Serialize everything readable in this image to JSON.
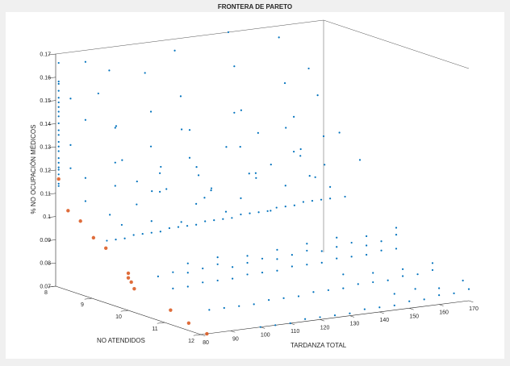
{
  "chart_data": {
    "type": "scatter",
    "projection": "3d",
    "title": "FRONTERA DE PARETO",
    "xlabel": "TARDANZA TOTAL",
    "ylabel": "NO ATENDIDOS",
    "zlabel": "% NO OCUPACIÓN MÉDICOS",
    "xlim": [
      80,
      170
    ],
    "ylim": [
      8,
      12
    ],
    "zlim": [
      0.07,
      0.17
    ],
    "xticks": [
      80,
      90,
      100,
      110,
      120,
      130,
      140,
      150,
      160,
      170
    ],
    "yticks": [
      8,
      9,
      10,
      11,
      12
    ],
    "zticks": [
      0.07,
      0.08,
      0.09,
      0.1,
      0.11,
      0.12,
      0.13,
      0.14,
      0.15,
      0.16,
      0.17
    ],
    "grid": false,
    "series": [
      {
        "color": "#0072bd",
        "marker": "dot",
        "comment_x_y_z": "x=tardanza total, y=no atendidos, z=% no ocupacion",
        "points": [
          [
            81,
            8,
            0.166
          ],
          [
            81,
            8,
            0.158
          ],
          [
            81,
            8,
            0.157
          ],
          [
            81,
            8,
            0.154
          ],
          [
            81,
            8,
            0.151
          ],
          [
            81,
            8,
            0.149
          ],
          [
            81,
            8,
            0.147
          ],
          [
            81,
            8,
            0.145
          ],
          [
            81,
            8,
            0.143
          ],
          [
            81,
            8,
            0.14
          ],
          [
            81,
            8,
            0.137
          ],
          [
            81,
            8,
            0.135
          ],
          [
            81,
            8,
            0.132
          ],
          [
            81,
            8,
            0.13
          ],
          [
            81,
            8,
            0.128
          ],
          [
            81,
            8,
            0.125
          ],
          [
            81,
            8,
            0.123
          ],
          [
            81,
            8,
            0.121
          ],
          [
            81,
            8,
            0.12
          ],
          [
            81,
            8,
            0.118
          ],
          [
            81,
            8,
            0.114
          ],
          [
            81,
            8,
            0.113
          ],
          [
            85,
            8,
            0.15
          ],
          [
            85,
            8,
            0.13
          ],
          [
            85,
            8,
            0.12
          ],
          [
            90,
            8,
            0.165
          ],
          [
            90,
            8,
            0.14
          ],
          [
            90,
            8,
            0.115
          ],
          [
            90,
            8,
            0.105
          ],
          [
            98,
            8,
            0.16
          ],
          [
            100,
            8,
            0.135
          ],
          [
            100,
            8,
            0.12
          ],
          [
            100,
            8,
            0.11
          ],
          [
            110,
            8,
            0.157
          ],
          [
            112,
            8,
            0.14
          ],
          [
            112,
            8,
            0.125
          ],
          [
            115,
            8,
            0.113
          ],
          [
            115,
            8,
            0.105
          ],
          [
            120,
            8,
            0.165
          ],
          [
            122,
            8,
            0.145
          ],
          [
            125,
            8,
            0.13
          ],
          [
            125,
            8,
            0.118
          ],
          [
            128,
            8,
            0.11
          ],
          [
            130,
            8,
            0.1
          ],
          [
            138,
            8,
            0.17
          ],
          [
            140,
            8,
            0.155
          ],
          [
            140,
            8,
            0.135
          ],
          [
            142,
            8,
            0.12
          ],
          [
            145,
            8,
            0.108
          ],
          [
            148,
            8,
            0.125
          ],
          [
            155,
            8,
            0.165
          ],
          [
            157,
            8,
            0.145
          ],
          [
            160,
            8,
            0.13
          ],
          [
            160,
            8,
            0.115
          ],
          [
            165,
            8,
            0.15
          ],
          [
            168,
            8,
            0.138
          ],
          [
            170,
            8,
            0.12
          ],
          [
            87,
            8.6,
            0.155
          ],
          [
            93,
            8.6,
            0.14
          ],
          [
            95,
            8.6,
            0.125
          ],
          [
            100,
            8.6,
            0.115
          ],
          [
            105,
            8.6,
            0.11
          ],
          [
            108,
            8.6,
            0.12
          ],
          [
            115,
            8.6,
            0.135
          ],
          [
            120,
            8.6,
            0.118
          ],
          [
            125,
            8.6,
            0.108
          ],
          [
            130,
            8.6,
            0.125
          ],
          [
            135,
            8.6,
            0.14
          ],
          [
            140,
            8.6,
            0.11
          ],
          [
            145,
            8.6,
            0.115
          ],
          [
            150,
            8.6,
            0.13
          ],
          [
            155,
            8.6,
            0.12
          ],
          [
            158,
            8.6,
            0.108
          ],
          [
            163,
            8.6,
            0.112
          ],
          [
            168,
            8.6,
            0.125
          ],
          [
            86,
            9,
            0.105
          ],
          [
            90,
            9,
            0.1
          ],
          [
            95,
            9,
            0.108
          ],
          [
            100,
            9,
            0.1
          ],
          [
            105,
            9,
            0.113
          ],
          [
            110,
            9,
            0.098
          ],
          [
            115,
            9,
            0.105
          ],
          [
            120,
            9,
            0.11
          ],
          [
            125,
            9,
            0.1
          ],
          [
            130,
            9,
            0.105
          ],
          [
            135,
            9,
            0.115
          ],
          [
            140,
            9,
            0.098
          ],
          [
            145,
            9,
            0.108
          ],
          [
            150,
            9,
            0.12
          ],
          [
            155,
            9,
            0.11
          ],
          [
            160,
            9,
            0.105
          ],
          [
            165,
            9,
            0.1
          ],
          [
            170,
            9,
            0.115
          ],
          [
            85,
            9,
            0.094
          ],
          [
            88,
            9,
            0.094
          ],
          [
            91,
            9,
            0.094
          ],
          [
            94,
            9,
            0.095
          ],
          [
            97,
            9,
            0.095
          ],
          [
            100,
            9,
            0.095
          ],
          [
            103,
            9,
            0.095
          ],
          [
            106,
            9,
            0.096
          ],
          [
            109,
            9,
            0.096
          ],
          [
            112,
            9,
            0.096
          ],
          [
            115,
            9,
            0.096
          ],
          [
            118,
            9,
            0.097
          ],
          [
            121,
            9,
            0.097
          ],
          [
            124,
            9,
            0.097
          ],
          [
            127,
            9,
            0.097
          ],
          [
            130,
            9,
            0.098
          ],
          [
            133,
            9,
            0.098
          ],
          [
            136,
            9,
            0.098
          ],
          [
            139,
            9,
            0.098
          ],
          [
            142,
            9,
            0.099
          ],
          [
            145,
            9,
            0.099
          ],
          [
            148,
            9,
            0.099
          ],
          [
            151,
            9,
            0.1
          ],
          [
            154,
            9,
            0.1
          ],
          [
            157,
            9,
            0.1
          ],
          [
            160,
            9,
            0.1
          ],
          [
            90,
            10,
            0.083
          ],
          [
            95,
            10,
            0.084
          ],
          [
            100,
            10,
            0.083
          ],
          [
            105,
            10,
            0.084
          ],
          [
            110,
            10,
            0.085
          ],
          [
            115,
            10,
            0.083
          ],
          [
            120,
            10,
            0.084
          ],
          [
            125,
            10,
            0.085
          ],
          [
            130,
            10,
            0.084
          ],
          [
            135,
            10,
            0.085
          ],
          [
            140,
            10,
            0.086
          ],
          [
            145,
            10,
            0.085
          ],
          [
            150,
            10,
            0.086
          ],
          [
            155,
            10,
            0.087
          ],
          [
            160,
            10,
            0.085
          ],
          [
            165,
            10,
            0.086
          ],
          [
            170,
            10,
            0.088
          ],
          [
            95,
            10,
            0.077
          ],
          [
            100,
            10,
            0.077
          ],
          [
            105,
            10,
            0.078
          ],
          [
            110,
            10,
            0.078
          ],
          [
            115,
            10,
            0.078
          ],
          [
            120,
            10,
            0.079
          ],
          [
            125,
            10,
            0.079
          ],
          [
            130,
            10,
            0.079
          ],
          [
            135,
            10,
            0.08
          ],
          [
            140,
            10,
            0.08
          ],
          [
            145,
            10,
            0.08
          ],
          [
            150,
            10,
            0.081
          ],
          [
            155,
            10,
            0.081
          ],
          [
            160,
            10,
            0.081
          ],
          [
            165,
            10,
            0.082
          ],
          [
            170,
            10,
            0.082
          ],
          [
            100,
            10,
            0.087
          ],
          [
            110,
            10,
            0.088
          ],
          [
            120,
            10,
            0.087
          ],
          [
            130,
            10,
            0.088
          ],
          [
            140,
            10,
            0.089
          ],
          [
            150,
            10,
            0.09
          ],
          [
            160,
            10,
            0.089
          ],
          [
            170,
            10,
            0.091
          ],
          [
            95,
            11,
            0.073
          ],
          [
            100,
            11,
            0.073
          ],
          [
            105,
            11,
            0.073
          ],
          [
            110,
            11,
            0.073
          ],
          [
            115,
            11,
            0.074
          ],
          [
            120,
            11,
            0.074
          ],
          [
            125,
            11,
            0.074
          ],
          [
            130,
            11,
            0.075
          ],
          [
            135,
            11,
            0.075
          ],
          [
            140,
            11,
            0.075
          ],
          [
            145,
            11,
            0.076
          ],
          [
            150,
            11,
            0.076
          ],
          [
            155,
            11,
            0.076
          ],
          [
            160,
            11,
            0.077
          ],
          [
            165,
            11,
            0.077
          ],
          [
            170,
            11,
            0.078
          ],
          [
            140,
            11,
            0.081
          ],
          [
            150,
            11,
            0.08
          ],
          [
            160,
            11,
            0.08
          ],
          [
            170,
            11,
            0.081
          ],
          [
            100,
            12,
            0.07
          ],
          [
            105,
            12,
            0.07
          ],
          [
            110,
            12,
            0.07
          ],
          [
            115,
            12,
            0.071
          ],
          [
            120,
            12,
            0.071
          ],
          [
            125,
            12,
            0.071
          ],
          [
            130,
            12,
            0.071
          ],
          [
            135,
            12,
            0.072
          ],
          [
            140,
            12,
            0.072
          ],
          [
            145,
            12,
            0.072
          ],
          [
            150,
            12,
            0.073
          ],
          [
            155,
            12,
            0.073
          ],
          [
            160,
            12,
            0.074
          ],
          [
            165,
            12,
            0.074
          ],
          [
            170,
            12,
            0.075
          ],
          [
            145,
            12,
            0.077
          ],
          [
            152,
            12,
            0.078
          ],
          [
            160,
            12,
            0.077
          ],
          [
            168,
            12,
            0.079
          ]
        ]
      },
      {
        "color": "#d95319",
        "marker": "star",
        "points": [
          [
            81,
            8,
            0.116
          ],
          [
            80.5,
            8.3,
            0.104
          ],
          [
            81,
            8.6,
            0.101
          ],
          [
            80.5,
            9,
            0.096
          ],
          [
            81,
            9.3,
            0.093
          ],
          [
            80,
            10,
            0.086
          ],
          [
            80,
            10,
            0.084
          ],
          [
            81,
            10,
            0.082
          ],
          [
            82,
            10,
            0.079
          ],
          [
            82,
            11,
            0.075
          ],
          [
            82,
            11.5,
            0.072
          ],
          [
            82,
            12,
            0.07
          ]
        ]
      }
    ]
  }
}
